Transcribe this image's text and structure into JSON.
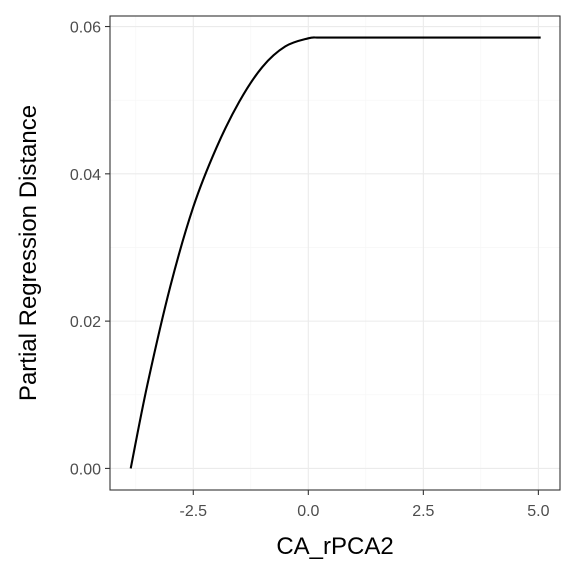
{
  "chart_data": {
    "type": "line",
    "title": "",
    "xlabel": "CA_rPCA2",
    "ylabel": "Partial Regression Distance",
    "xlim": [
      -4.31,
      5.47
    ],
    "ylim": [
      -0.00293,
      0.06143
    ],
    "x_ticks": [
      -2.5,
      0.0,
      2.5,
      5.0
    ],
    "x_tick_labels": [
      "-2.5",
      "0.0",
      "2.5",
      "5.0"
    ],
    "y_ticks": [
      0.0,
      0.02,
      0.04,
      0.06
    ],
    "y_tick_labels": [
      "0.00",
      "0.02",
      "0.04",
      "0.06"
    ],
    "grid": true,
    "line_color": "#000000",
    "grid_major_color": "#ebebeb",
    "grid_minor_color": "#f5f5f5",
    "series": [
      {
        "values_x": [
          -3.86,
          -3.5,
          -3.0,
          -2.5,
          -2.0,
          -1.5,
          -1.0,
          -0.5,
          0.0,
          0.2,
          0.4,
          1.0,
          2.0,
          3.0,
          4.0,
          5.05
        ],
        "values_y": [
          0.0,
          0.0113,
          0.0247,
          0.0355,
          0.0435,
          0.0498,
          0.0545,
          0.0573,
          0.0584,
          0.0585,
          0.0585,
          0.0585,
          0.0585,
          0.0585,
          0.0585,
          0.0585
        ]
      }
    ]
  }
}
